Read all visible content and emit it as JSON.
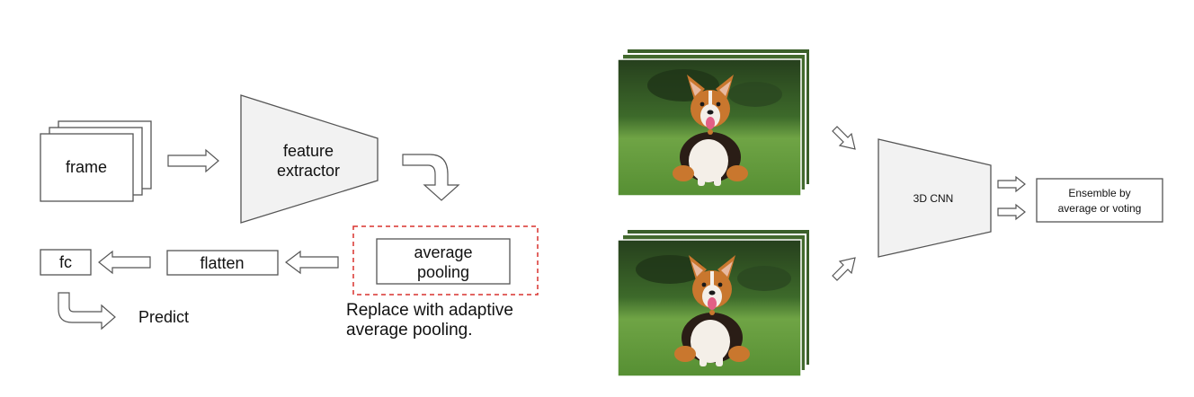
{
  "left_pipeline": {
    "frame_label": "frame",
    "extractor_line1": "feature",
    "extractor_line2": "extractor",
    "pooling_line1": "average",
    "pooling_line2": "pooling",
    "flatten_label": "flatten",
    "fc_label": "fc",
    "predict_label": "Predict",
    "note_line1": "Replace with adaptive",
    "note_line2": "average pooling."
  },
  "right_pipeline": {
    "model_label": "3D CNN",
    "ensemble_line1": "Ensemble by",
    "ensemble_line2": "average or voting"
  },
  "colors": {
    "dashed_border": "#d9322f",
    "stroke": "#555555",
    "shape_fill": "#f2f2f2",
    "grass": "#5e9a3a",
    "background_foliage": "#2f4d24",
    "dog_fur_orange": "#c9772e",
    "dog_fur_dark": "#2a1d16",
    "dog_fur_white": "#f4efe8",
    "tongue": "#e35f86"
  },
  "icons": [
    "dog-photo",
    "hollow-arrow-right",
    "hollow-arrow-left",
    "curved-arrow-down",
    "hook-arrow-right"
  ]
}
